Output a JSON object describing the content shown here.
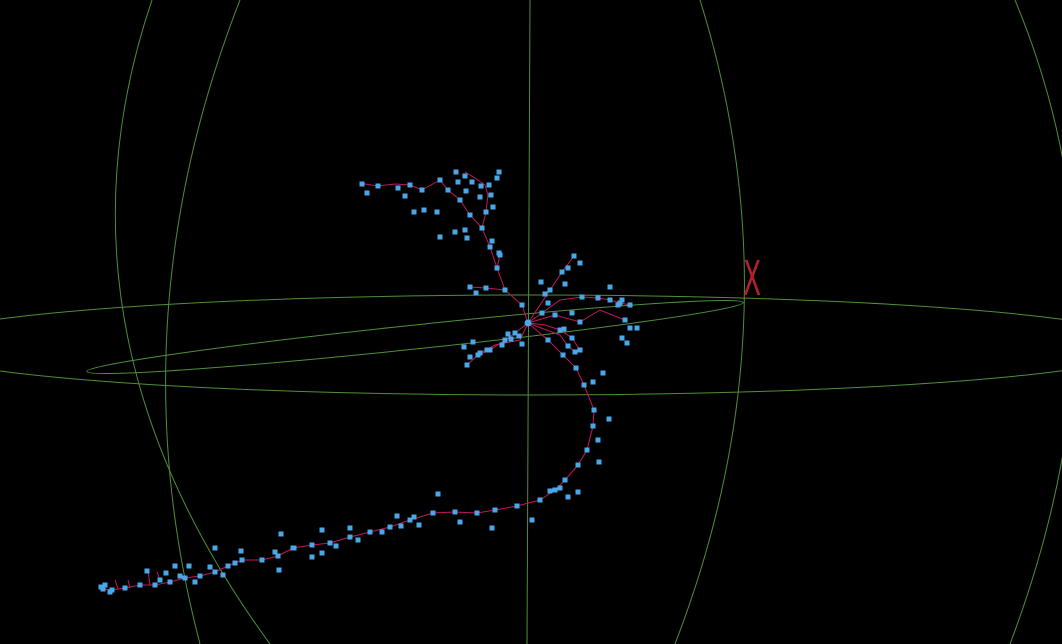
{
  "viewer": {
    "background": "#000000",
    "grid_color": "#4f8f3a",
    "branch_color": "#c0185e",
    "node_color": "#4aa8e8",
    "axis_marker": {
      "label": "X",
      "color": "#b0222a"
    }
  }
}
